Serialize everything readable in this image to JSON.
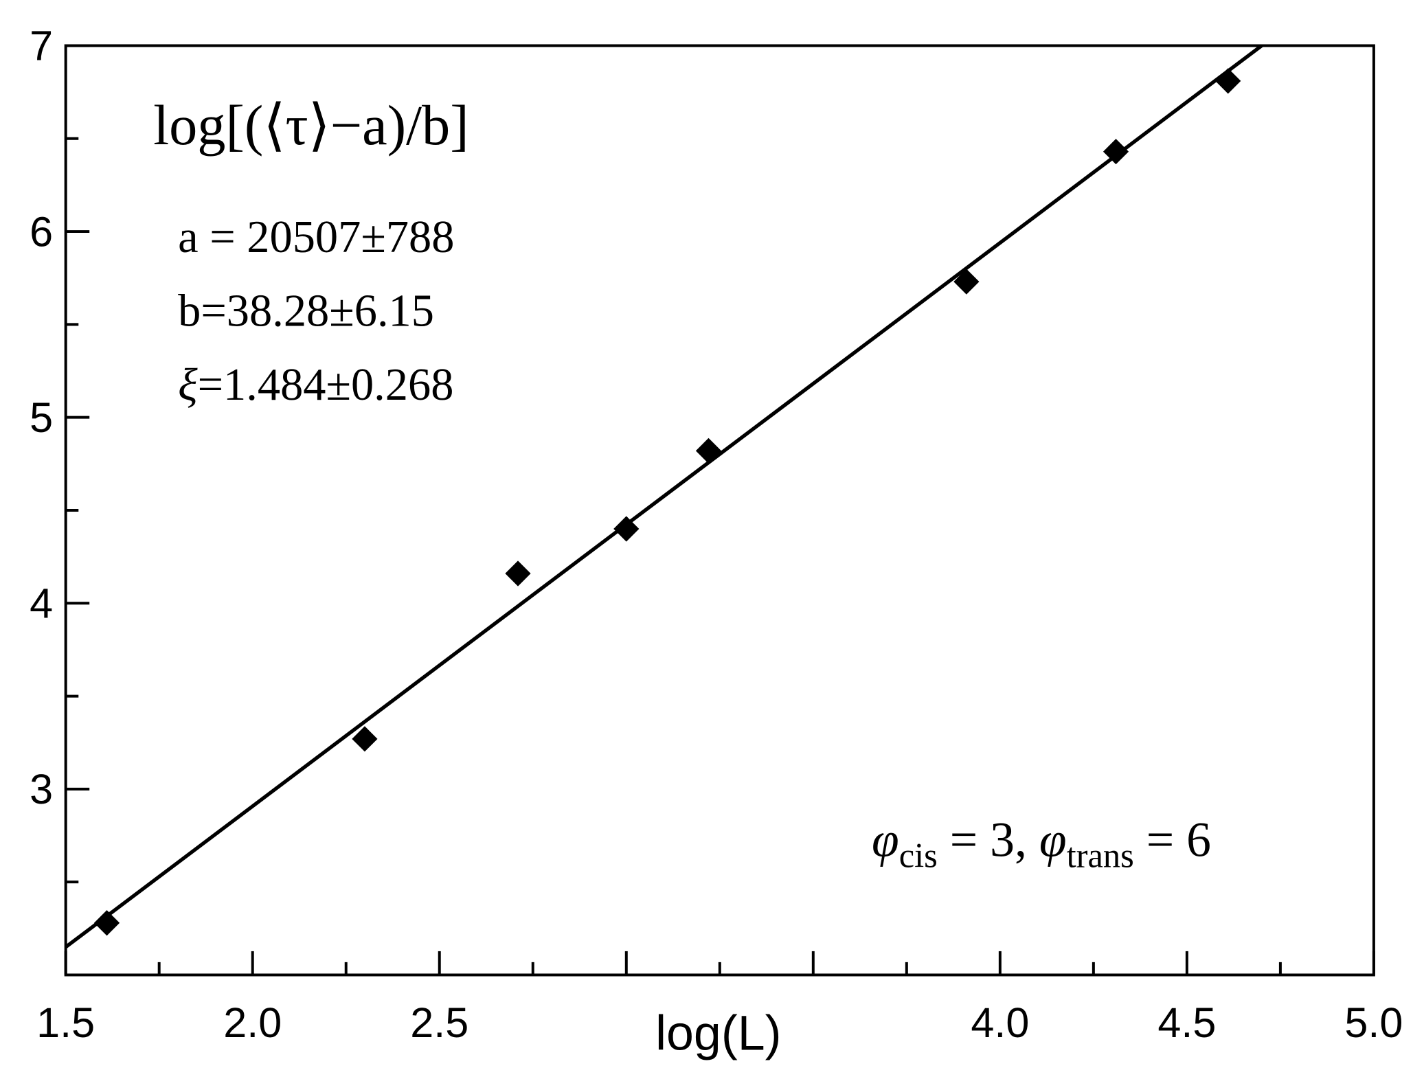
{
  "chart_data": {
    "type": "scatter",
    "x_label": "log(L)",
    "annotations": {
      "formula": "log[(⟨τ⟩−a)/b]",
      "a": "a = 20507±788",
      "b": "b=38.28±6.15",
      "xi_symbol": "ξ",
      "xi": "=1.484±0.268",
      "phi": [
        "φ",
        "cis",
        " = 3, ",
        "φ",
        "trans",
        " = 6"
      ]
    },
    "x": [
      1.61,
      2.3,
      2.71,
      3.0,
      3.22,
      3.91,
      4.31,
      4.61
    ],
    "values": [
      2.28,
      3.27,
      4.16,
      4.4,
      4.82,
      5.73,
      6.43,
      6.81
    ],
    "color": "#000000",
    "fit": {
      "x": [
        1.5,
        4.7
      ],
      "values": [
        2.15,
        7.0
      ],
      "color": "#000000"
    },
    "xlim": [
      1.5,
      5.0
    ],
    "ylim": [
      2.0,
      7.0
    ],
    "xticks": [
      {
        "value": 1.5,
        "label": "1.5"
      },
      {
        "value": 2.0,
        "label": "2.0"
      },
      {
        "value": 2.5,
        "label": "2.5"
      },
      {
        "value": 3.0,
        "label": null
      },
      {
        "value": 3.5,
        "label": null
      },
      {
        "value": 4.0,
        "label": "4.0"
      },
      {
        "value": 4.5,
        "label": "4.5"
      },
      {
        "value": 5.0,
        "label": "5.0"
      }
    ],
    "xminorticks": [
      1.75,
      2.25,
      2.75,
      3.25,
      3.75,
      4.25,
      4.75
    ],
    "yticks": [
      3,
      4,
      5,
      6,
      7
    ],
    "yminorticks": [
      2.5,
      3.5,
      4.5,
      5.5,
      6.5
    ]
  }
}
